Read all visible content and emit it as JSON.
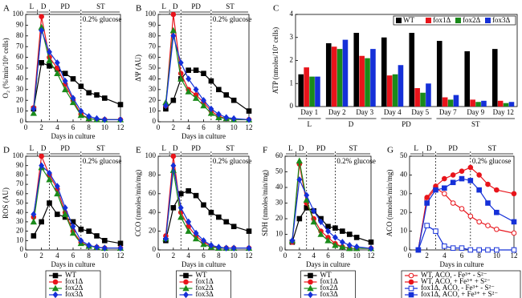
{
  "chart_data": [
    {
      "type": "line",
      "panel": "A",
      "ylabel": "O₂ (%/min/10⁶ cells)",
      "xlabel": "Days in culture",
      "annotation": "0.2% glucose",
      "phases": [
        {
          "label": "L",
          "range": [
            0,
            1.5
          ]
        },
        {
          "label": "D",
          "range": [
            1.5,
            3
          ]
        },
        {
          "label": "PD",
          "range": [
            3,
            7
          ]
        },
        {
          "label": "ST",
          "range": [
            7,
            12
          ]
        }
      ],
      "x": [
        1,
        2,
        3,
        4,
        5,
        6,
        7,
        8,
        9,
        10,
        12
      ],
      "xlim": [
        0,
        12
      ],
      "xticks": [
        0,
        2,
        4,
        6,
        8,
        10,
        12
      ],
      "ylim": [
        0,
        100
      ],
      "yticks": [
        0,
        10,
        20,
        30,
        40,
        50,
        60,
        70,
        80,
        90,
        100
      ],
      "legend": false,
      "series": [
        {
          "name": "WT",
          "color": "#000000",
          "marker": "square",
          "filled": true,
          "values": [
            12,
            55,
            52,
            49,
            45,
            40,
            33,
            27,
            25,
            22,
            16
          ]
        },
        {
          "name": "fox1Δ",
          "color": "#e8141b",
          "marker": "circle",
          "filled": true,
          "values": [
            13,
            98,
            60,
            50,
            35,
            20,
            7,
            3,
            2,
            2,
            2
          ]
        },
        {
          "name": "fox2Δ",
          "color": "#1a8a1a",
          "marker": "triangle",
          "filled": true,
          "values": [
            8,
            88,
            57,
            45,
            30,
            18,
            6,
            3,
            2,
            2,
            2
          ]
        },
        {
          "name": "fox3Δ",
          "color": "#1530d8",
          "marker": "diamond",
          "filled": true,
          "values": [
            12,
            85,
            65,
            55,
            38,
            22,
            10,
            5,
            3,
            2,
            2
          ]
        }
      ]
    },
    {
      "type": "line",
      "panel": "B",
      "ylabel": "ΔΨ (AU)",
      "xlabel": "Days in culture",
      "annotation": "0.2% glucose",
      "phases": [
        {
          "label": "L",
          "range": [
            0,
            1.5
          ]
        },
        {
          "label": "D",
          "range": [
            1.5,
            3
          ]
        },
        {
          "label": "PD",
          "range": [
            3,
            7
          ]
        },
        {
          "label": "ST",
          "range": [
            7,
            12
          ]
        }
      ],
      "x": [
        1,
        2,
        3,
        4,
        5,
        6,
        7,
        8,
        9,
        10,
        12
      ],
      "xlim": [
        0,
        12
      ],
      "xticks": [
        0,
        2,
        4,
        6,
        8,
        10,
        12
      ],
      "ylim": [
        0,
        100
      ],
      "yticks": [
        0,
        10,
        20,
        30,
        40,
        50,
        60,
        70,
        80,
        90,
        100
      ],
      "legend": false,
      "series": [
        {
          "name": "WT",
          "color": "#000000",
          "marker": "square",
          "filled": true,
          "values": [
            12,
            20,
            40,
            48,
            48,
            45,
            38,
            30,
            25,
            20,
            10
          ]
        },
        {
          "name": "fox1Δ",
          "color": "#e8141b",
          "marker": "circle",
          "filled": true,
          "values": [
            15,
            100,
            45,
            30,
            25,
            18,
            10,
            5,
            3,
            2,
            2
          ]
        },
        {
          "name": "fox2Δ",
          "color": "#1a8a1a",
          "marker": "triangle",
          "filled": true,
          "values": [
            18,
            85,
            40,
            28,
            22,
            15,
            8,
            4,
            3,
            2,
            2
          ]
        },
        {
          "name": "fox3Δ",
          "color": "#1530d8",
          "marker": "diamond",
          "filled": true,
          "values": [
            15,
            80,
            55,
            40,
            30,
            20,
            12,
            7,
            4,
            3,
            2
          ]
        }
      ]
    },
    {
      "type": "bar",
      "panel": "C",
      "ylabel": "ATP (nmoles/10⁷ cells)",
      "groups": [
        {
          "label": "L",
          "categories": [
            "Day 1"
          ]
        },
        {
          "label": "D",
          "categories": [
            "Day 2",
            "Day 3"
          ]
        },
        {
          "label": "PD",
          "categories": [
            "Day 4",
            "Day 5"
          ]
        },
        {
          "label": "ST",
          "categories": [
            "Day 7",
            "Day 9",
            "Day 12"
          ]
        }
      ],
      "ylim": [
        0,
        4
      ],
      "yticks": [
        0,
        1,
        2,
        3,
        4
      ],
      "legend": "upper right",
      "series": [
        {
          "name": "WT",
          "color": "#000000",
          "values": [
            1.4,
            2.75,
            3.2,
            3.0,
            3.2,
            2.85,
            2.4,
            2.5
          ]
        },
        {
          "name": "fox1Δ",
          "color": "#e8141b",
          "values": [
            1.7,
            2.6,
            2.2,
            1.35,
            0.8,
            0.4,
            0.3,
            0.25
          ]
        },
        {
          "name": "fox2Δ",
          "color": "#1a8a1a",
          "values": [
            1.3,
            2.5,
            2.1,
            1.4,
            0.6,
            0.3,
            0.2,
            0.15
          ]
        },
        {
          "name": "fox3Δ",
          "color": "#1530d8",
          "values": [
            1.3,
            2.9,
            2.5,
            1.8,
            1.0,
            0.5,
            0.25,
            0.2
          ]
        }
      ]
    },
    {
      "type": "line",
      "panel": "D",
      "ylabel": "ROS (AU)",
      "xlabel": "Days in culture",
      "annotation": "0.2% glucose",
      "phases": [
        {
          "label": "L",
          "range": [
            0,
            1.5
          ]
        },
        {
          "label": "D",
          "range": [
            1.5,
            3
          ]
        },
        {
          "label": "PD",
          "range": [
            3,
            7
          ]
        },
        {
          "label": "ST",
          "range": [
            7,
            12
          ]
        }
      ],
      "x": [
        1,
        2,
        3,
        4,
        5,
        6,
        7,
        8,
        9,
        10,
        12
      ],
      "xlim": [
        0,
        12
      ],
      "xticks": [
        0,
        2,
        4,
        6,
        8,
        10,
        12
      ],
      "ylim": [
        0,
        100
      ],
      "yticks": [
        0,
        10,
        20,
        30,
        40,
        50,
        60,
        70,
        80,
        90,
        100
      ],
      "legend": "below",
      "series": [
        {
          "name": "WT",
          "color": "#000000",
          "marker": "square",
          "filled": true,
          "values": [
            15,
            30,
            50,
            38,
            35,
            30,
            22,
            20,
            15,
            10,
            7
          ]
        },
        {
          "name": "fox1Δ",
          "color": "#e8141b",
          "marker": "circle",
          "filled": true,
          "values": [
            35,
            100,
            80,
            65,
            40,
            20,
            8,
            4,
            3,
            2,
            2
          ]
        },
        {
          "name": "fox2Δ",
          "color": "#1a8a1a",
          "marker": "triangle",
          "filled": true,
          "values": [
            30,
            88,
            75,
            60,
            38,
            18,
            7,
            4,
            3,
            2,
            2
          ]
        },
        {
          "name": "fox3Δ",
          "color": "#1530d8",
          "marker": "diamond",
          "filled": true,
          "values": [
            38,
            90,
            82,
            68,
            45,
            25,
            10,
            5,
            3,
            2,
            2
          ]
        }
      ]
    },
    {
      "type": "line",
      "panel": "E",
      "ylabel": "CCO (nmoles/min/mg)",
      "xlabel": "Days in culture",
      "annotation": "0.2% glucose",
      "phases": [
        {
          "label": "L",
          "range": [
            0,
            1.5
          ]
        },
        {
          "label": "D",
          "range": [
            1.5,
            3
          ]
        },
        {
          "label": "PD",
          "range": [
            3,
            7
          ]
        },
        {
          "label": "ST",
          "range": [
            7,
            12
          ]
        }
      ],
      "x": [
        1,
        2,
        3,
        4,
        5,
        6,
        7,
        8,
        9,
        10,
        12
      ],
      "xlim": [
        0,
        12
      ],
      "xticks": [
        0,
        2,
        4,
        6,
        8,
        10,
        12
      ],
      "ylim": [
        0,
        100
      ],
      "yticks": [
        0,
        20,
        40,
        60,
        80,
        100
      ],
      "legend": "below",
      "series": [
        {
          "name": "WT",
          "color": "#000000",
          "marker": "square",
          "filled": true,
          "values": [
            10,
            45,
            60,
            63,
            58,
            48,
            40,
            35,
            30,
            25,
            20
          ]
        },
        {
          "name": "fox1Δ",
          "color": "#e8141b",
          "marker": "circle",
          "filled": true,
          "values": [
            15,
            100,
            40,
            25,
            15,
            8,
            4,
            2,
            2,
            2,
            2
          ]
        },
        {
          "name": "fox2Δ",
          "color": "#1a8a1a",
          "marker": "triangle",
          "filled": true,
          "values": [
            12,
            85,
            35,
            20,
            12,
            6,
            3,
            2,
            2,
            2,
            2
          ]
        },
        {
          "name": "fox3Δ",
          "color": "#1530d8",
          "marker": "diamond",
          "filled": true,
          "values": [
            12,
            90,
            45,
            30,
            18,
            10,
            5,
            3,
            2,
            2,
            2
          ]
        }
      ]
    },
    {
      "type": "line",
      "panel": "F",
      "ylabel": "SDH (nmoles/min/mg)",
      "xlabel": "Days in culture",
      "annotation": "0.2% glucose",
      "phases": [
        {
          "label": "L",
          "range": [
            0,
            1.5
          ]
        },
        {
          "label": "D",
          "range": [
            1.5,
            3
          ]
        },
        {
          "label": "PD",
          "range": [
            3,
            7
          ]
        },
        {
          "label": "ST",
          "range": [
            7,
            12
          ]
        }
      ],
      "x": [
        1,
        2,
        3,
        4,
        5,
        6,
        7,
        8,
        9,
        10,
        12
      ],
      "xlim": [
        0,
        12
      ],
      "xticks": [
        0,
        2,
        4,
        6,
        8,
        10,
        12
      ],
      "ylim": [
        0,
        60
      ],
      "yticks": [
        0,
        10,
        20,
        30,
        40,
        50,
        60
      ],
      "legend": "below",
      "series": [
        {
          "name": "WT",
          "color": "#000000",
          "marker": "square",
          "filled": true,
          "values": [
            5,
            20,
            27,
            25,
            20,
            15,
            14,
            12,
            10,
            8,
            5
          ]
        },
        {
          "name": "fox1Δ",
          "color": "#e8141b",
          "marker": "circle",
          "filled": true,
          "values": [
            5,
            55,
            30,
            20,
            12,
            8,
            4,
            2,
            1,
            1,
            1
          ]
        },
        {
          "name": "fox2Δ",
          "color": "#1a8a1a",
          "marker": "triangle",
          "filled": true,
          "values": [
            6,
            57,
            32,
            18,
            10,
            6,
            3,
            2,
            1,
            1,
            1
          ]
        },
        {
          "name": "fox3Δ",
          "color": "#1530d8",
          "marker": "diamond",
          "filled": true,
          "values": [
            6,
            45,
            35,
            25,
            18,
            12,
            8,
            5,
            3,
            2,
            1
          ]
        }
      ]
    },
    {
      "type": "line",
      "panel": "G",
      "ylabel": "ACO (nmoles/min/mg)",
      "xlabel": "Days in culture",
      "annotation": "0.2% glucose",
      "phases": [
        {
          "label": "L",
          "range": [
            0,
            1.5
          ]
        },
        {
          "label": "D",
          "range": [
            1.5,
            3
          ]
        },
        {
          "label": "PD",
          "range": [
            3,
            7
          ]
        },
        {
          "label": "ST",
          "range": [
            7,
            12
          ]
        }
      ],
      "x": [
        1,
        2,
        3,
        4,
        5,
        6,
        7,
        8,
        9,
        10,
        12
      ],
      "xlim": [
        0,
        12
      ],
      "xticks": [
        0,
        2,
        4,
        6,
        8,
        10,
        12
      ],
      "ylim": [
        0,
        50
      ],
      "yticks": [
        0,
        10,
        20,
        30,
        40,
        50
      ],
      "legend": "below",
      "series": [
        {
          "name": "WT, ACO, - Fe³⁺ - S²⁻",
          "color": "#e8141b",
          "marker": "circle",
          "filled": false,
          "values": [
            0,
            27,
            33,
            30,
            25,
            22,
            18,
            15,
            13,
            11,
            9
          ]
        },
        {
          "name": "WT, ACO, + Fe³⁺ + S²⁻",
          "color": "#e8141b",
          "marker": "circle",
          "filled": true,
          "values": [
            0,
            28,
            34,
            38,
            40,
            42,
            44,
            40,
            35,
            32,
            30
          ]
        },
        {
          "name": "fox1Δ, ACO, - Fe³⁺ - S²⁻",
          "color": "#1530d8",
          "marker": "square",
          "filled": false,
          "values": [
            0,
            13,
            10,
            2,
            1,
            1,
            0,
            0,
            0,
            0,
            0
          ]
        },
        {
          "name": "fox1Δ, ACO, + Fe³⁺ + S²⁻",
          "color": "#1530d8",
          "marker": "square",
          "filled": true,
          "values": [
            0,
            25,
            32,
            33,
            36,
            38,
            37,
            32,
            25,
            20,
            15
          ]
        }
      ]
    }
  ]
}
